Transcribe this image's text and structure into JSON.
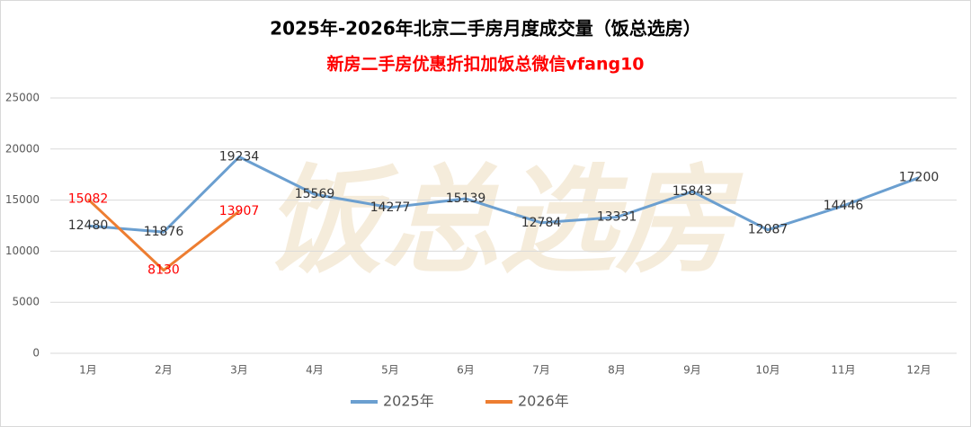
{
  "chart_data": {
    "type": "line",
    "title": "2025年-2026年北京二手房月度成交量（饭总选房）",
    "subtitle": "新房二手房优惠折扣加饭总微信vfang10",
    "watermark": "饭总选房",
    "categories": [
      "1月",
      "2月",
      "3月",
      "4月",
      "5月",
      "6月",
      "7月",
      "8月",
      "9月",
      "10月",
      "11月",
      "12月"
    ],
    "series": [
      {
        "name": "2025年",
        "color": "#6b9fd0",
        "label_color": "#333333",
        "values": [
          12480,
          11876,
          19234,
          15569,
          14277,
          15139,
          12784,
          13331,
          15843,
          12087,
          14446,
          17200
        ]
      },
      {
        "name": "2026年",
        "color": "#ed7d31",
        "label_color": "#ff0000",
        "values": [
          15082,
          8130,
          13907,
          null,
          null,
          null,
          null,
          null,
          null,
          null,
          null,
          null
        ]
      }
    ],
    "ylim": [
      0,
      25000
    ],
    "yticks": [
      0,
      5000,
      10000,
      15000,
      20000,
      25000
    ],
    "grid": true,
    "legend": "bottom"
  }
}
